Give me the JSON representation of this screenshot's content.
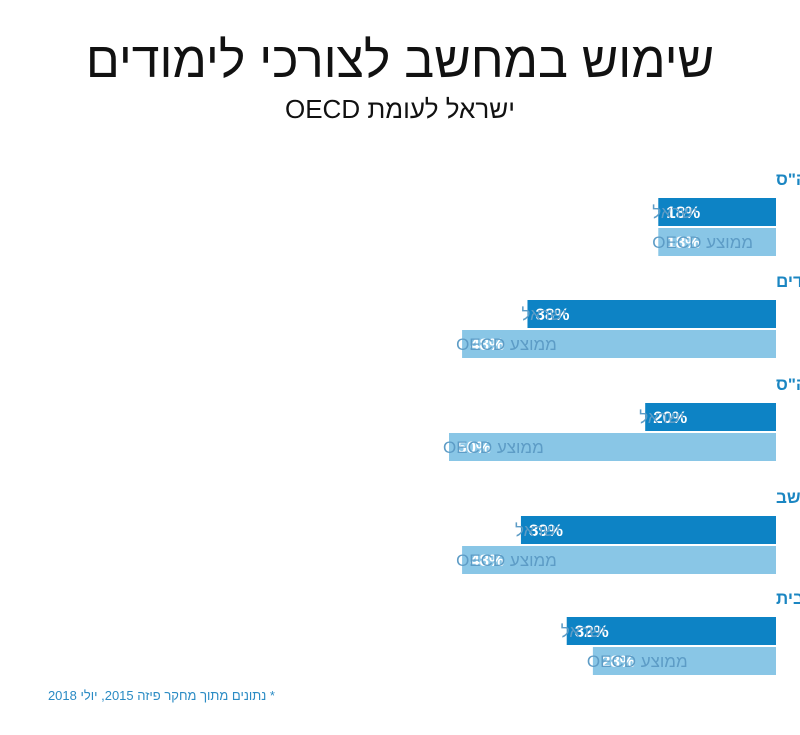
{
  "title": "שימוש במחשב לצורכי לימודים",
  "subtitle": "ישראל לעומת OECD",
  "footnote": "* נתונים מתוך מחקר פיזה 2015, יולי 2018",
  "colors": {
    "israel": "#0d83c5",
    "oecd": "#89c6e6",
    "category_text": "#1b86c2",
    "series_label_text": "#5d9cc6"
  },
  "chart_data": {
    "type": "bar",
    "orientation": "horizontal",
    "value_suffix": "%",
    "categories": [
      "העלאת עבודה לאתר ביה\"ס",
      "גלישה באינטרנט לצורכי לימודים",
      "השתתפות בצ'אט של ביה\"ס",
      "הכנת שיעורי בית במחשב",
      "דוא\"ל עם מורים/ות להגשת שיעורי בית"
    ],
    "series": [
      {
        "name": "ישראל",
        "values": [
          18,
          38,
          20,
          39,
          32
        ]
      },
      {
        "name": "ממוצע OECD",
        "values": [
          18,
          48,
          50,
          48,
          28
        ]
      }
    ],
    "xlim": [
      0,
      100
    ]
  }
}
